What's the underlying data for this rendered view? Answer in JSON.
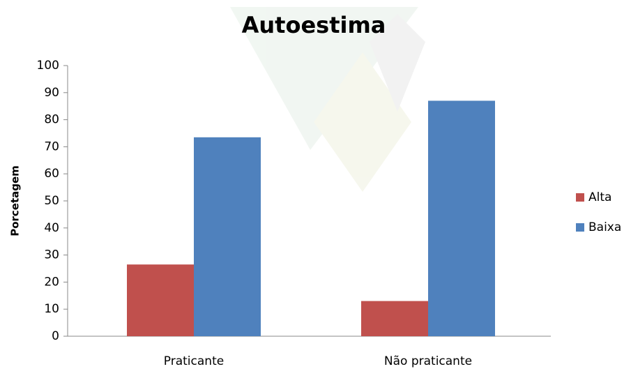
{
  "chart_data": {
    "type": "bar",
    "title": "Autoestima",
    "y_label": "Porcetagem",
    "categories": [
      "Praticante",
      "Não praticante"
    ],
    "series": [
      {
        "name": "Alta",
        "color": "#c0504d",
        "values": [
          26.5,
          13
        ]
      },
      {
        "name": "Baixa",
        "color": "#4f81bd",
        "values": [
          73.5,
          87
        ]
      }
    ],
    "ylim": [
      0,
      100
    ],
    "yticks": [
      0,
      10,
      20,
      30,
      40,
      50,
      60,
      70,
      80,
      90,
      100
    ],
    "grid": false,
    "legend": "right"
  }
}
